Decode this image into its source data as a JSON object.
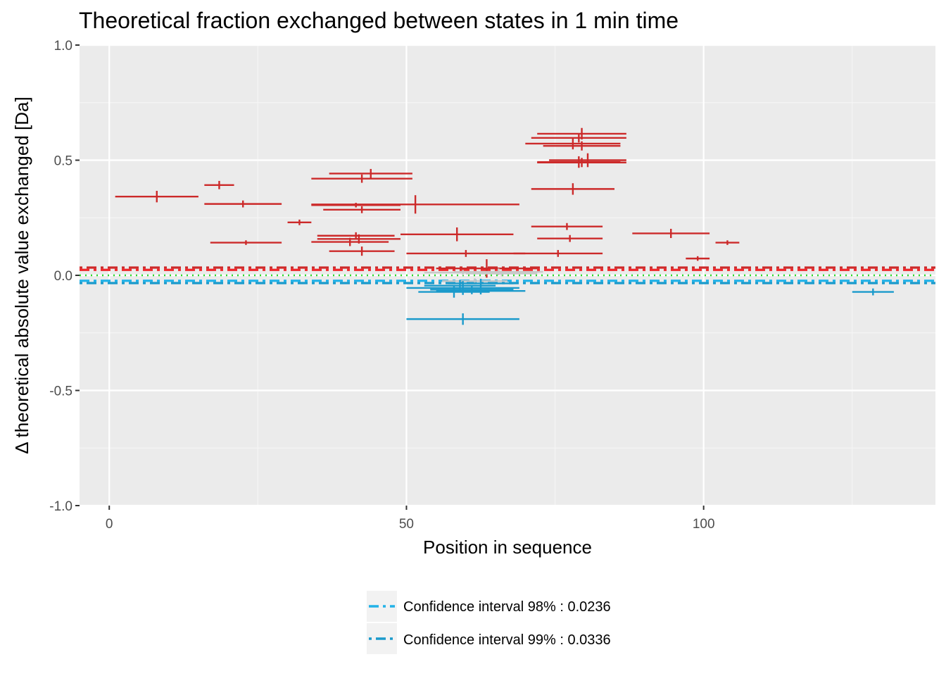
{
  "chart_data": {
    "type": "scatter",
    "title": "Theoretical fraction exchanged between states in 1 min time",
    "xlabel": "Position in sequence",
    "ylabel": "Δ theoretical absolute value exchanged [Da]",
    "xlim": [
      -5,
      139
    ],
    "ylim": [
      -1.0,
      1.0
    ],
    "x_ticks": [
      0,
      50,
      100
    ],
    "x_tick_labels": [
      "0",
      "50",
      "100"
    ],
    "y_ticks": [
      -1.0,
      -0.5,
      0.0,
      0.5,
      1.0
    ],
    "y_tick_labels": [
      "-1.0",
      "-0.5",
      "0.0",
      "0.5",
      "1.0"
    ],
    "grid": true,
    "legend_position": "bottom",
    "colors": {
      "significant_positive": "#cc2a2a",
      "significant_negative": "#1a9acb",
      "not_significant": "#c8c8c8",
      "ci98_positive": "#f0262a",
      "ci99_positive": "#cc2a2a",
      "ci98_negative": "#22b2e8",
      "ci99_negative": "#1a9acb",
      "zero_line": "#2bd92b",
      "panel_background": "#ebebeb",
      "grid_major": "#ffffff",
      "grid_minor": "#f5f5f5"
    },
    "confidence_levels": [
      {
        "name": "Confidence interval 98%",
        "value": 0.0236,
        "label": "Confidence interval 98% : 0.0236"
      },
      {
        "name": "Confidence interval 99%",
        "value": 0.0336,
        "label": "Confidence interval 99% : 0.0336"
      }
    ],
    "peptides": [
      {
        "start": 1,
        "end": 15,
        "value": 0.342,
        "error": 0.025,
        "class": "positive"
      },
      {
        "start": 16,
        "end": 21,
        "value": 0.392,
        "error": 0.018,
        "class": "positive"
      },
      {
        "start": 16,
        "end": 29,
        "value": 0.31,
        "error": 0.015,
        "class": "positive"
      },
      {
        "start": 17,
        "end": 29,
        "value": 0.142,
        "error": 0.01,
        "class": "positive"
      },
      {
        "start": 30,
        "end": 34,
        "value": 0.23,
        "error": 0.012,
        "class": "positive"
      },
      {
        "start": 34,
        "end": 51,
        "value": 0.42,
        "error": 0.018,
        "class": "positive"
      },
      {
        "start": 37,
        "end": 51,
        "value": 0.442,
        "error": 0.02,
        "class": "positive"
      },
      {
        "start": 34,
        "end": 49,
        "value": 0.305,
        "error": 0.01,
        "class": "positive"
      },
      {
        "start": 34,
        "end": 69,
        "value": 0.308,
        "error": 0.04,
        "class": "positive"
      },
      {
        "start": 36,
        "end": 49,
        "value": 0.285,
        "error": 0.015,
        "class": "positive"
      },
      {
        "start": 35,
        "end": 48,
        "value": 0.172,
        "error": 0.015,
        "class": "positive"
      },
      {
        "start": 35,
        "end": 49,
        "value": 0.158,
        "error": 0.02,
        "class": "positive"
      },
      {
        "start": 34,
        "end": 47,
        "value": 0.145,
        "error": 0.018,
        "class": "positive"
      },
      {
        "start": 37,
        "end": 48,
        "value": 0.105,
        "error": 0.02,
        "class": "positive"
      },
      {
        "start": 49,
        "end": 68,
        "value": 0.178,
        "error": 0.03,
        "class": "positive"
      },
      {
        "start": 50,
        "end": 70,
        "value": 0.095,
        "error": 0.015,
        "class": "positive"
      },
      {
        "start": 55,
        "end": 72,
        "value": 0.03,
        "error": 0.04,
        "class": "positive"
      },
      {
        "start": 70,
        "end": 86,
        "value": 0.572,
        "error": 0.025,
        "class": "positive"
      },
      {
        "start": 71,
        "end": 87,
        "value": 0.597,
        "error": 0.02,
        "class": "positive"
      },
      {
        "start": 72,
        "end": 87,
        "value": 0.615,
        "error": 0.025,
        "class": "positive"
      },
      {
        "start": 73,
        "end": 86,
        "value": 0.562,
        "error": 0.02,
        "class": "positive"
      },
      {
        "start": 74,
        "end": 87,
        "value": 0.5,
        "error": 0.03,
        "class": "positive"
      },
      {
        "start": 72,
        "end": 87,
        "value": 0.49,
        "error": 0.02,
        "class": "positive"
      },
      {
        "start": 72,
        "end": 86,
        "value": 0.492,
        "error": 0.025,
        "class": "positive"
      },
      {
        "start": 71,
        "end": 85,
        "value": 0.375,
        "error": 0.025,
        "class": "positive"
      },
      {
        "start": 71,
        "end": 83,
        "value": 0.212,
        "error": 0.015,
        "class": "positive"
      },
      {
        "start": 72,
        "end": 83,
        "value": 0.16,
        "error": 0.015,
        "class": "positive"
      },
      {
        "start": 68,
        "end": 83,
        "value": 0.095,
        "error": 0.015,
        "class": "positive"
      },
      {
        "start": 88,
        "end": 101,
        "value": 0.182,
        "error": 0.02,
        "class": "positive"
      },
      {
        "start": 97,
        "end": 101,
        "value": 0.073,
        "error": 0.01,
        "class": "positive"
      },
      {
        "start": 102,
        "end": 106,
        "value": 0.142,
        "error": 0.01,
        "class": "positive"
      },
      {
        "start": 53,
        "end": 66,
        "value": 0.012,
        "error": 0.012,
        "class": "not_significant"
      },
      {
        "start": 58,
        "end": 73,
        "value": 0.015,
        "error": 0.015,
        "class": "not_significant"
      },
      {
        "start": 60,
        "end": 72,
        "value": 0.008,
        "error": 0.012,
        "class": "not_significant"
      },
      {
        "start": 56,
        "end": 67,
        "value": -0.025,
        "error": 0.012,
        "class": "not_significant"
      },
      {
        "start": 50,
        "end": 69,
        "value": -0.055,
        "error": 0.03,
        "class": "negative"
      },
      {
        "start": 52,
        "end": 64,
        "value": -0.072,
        "error": 0.025,
        "class": "negative"
      },
      {
        "start": 54,
        "end": 68,
        "value": -0.062,
        "error": 0.02,
        "class": "negative"
      },
      {
        "start": 55,
        "end": 70,
        "value": -0.068,
        "error": 0.015,
        "class": "negative"
      },
      {
        "start": 53,
        "end": 65,
        "value": -0.045,
        "error": 0.025,
        "class": "negative"
      },
      {
        "start": 57,
        "end": 68,
        "value": -0.035,
        "error": 0.02,
        "class": "negative"
      },
      {
        "start": 50,
        "end": 69,
        "value": -0.19,
        "error": 0.025,
        "class": "negative"
      },
      {
        "start": 125,
        "end": 132,
        "value": -0.072,
        "error": 0.015,
        "class": "negative"
      }
    ]
  }
}
